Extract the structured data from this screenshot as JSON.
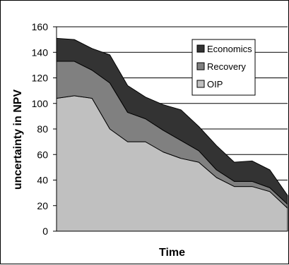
{
  "chart_data": {
    "type": "area",
    "stacked": true,
    "x_count": 14,
    "xlabel": "Time",
    "ylabel": "uncertainty in NPV",
    "ylim": [
      0,
      160
    ],
    "yticks": [
      0,
      20,
      40,
      60,
      80,
      100,
      120,
      140,
      160
    ],
    "grid": true,
    "legend_position": "top-right",
    "series": [
      {
        "name": "OIP",
        "color": "#c0c0c0",
        "values": [
          104,
          106,
          104,
          80,
          70,
          70,
          62,
          57,
          54,
          42,
          35,
          35,
          31,
          18
        ]
      },
      {
        "name": "Recovery",
        "color": "#808080",
        "values": [
          29,
          27,
          22,
          36,
          23,
          18,
          17,
          14,
          9,
          6,
          4,
          4,
          3,
          3
        ]
      },
      {
        "name": "Economics",
        "color": "#333333",
        "values": [
          18,
          17,
          17,
          22,
          21,
          17,
          20,
          24,
          19,
          19,
          15,
          16,
          14,
          7
        ]
      }
    ],
    "legend_order": [
      "Economics",
      "Recovery",
      "OIP"
    ]
  }
}
